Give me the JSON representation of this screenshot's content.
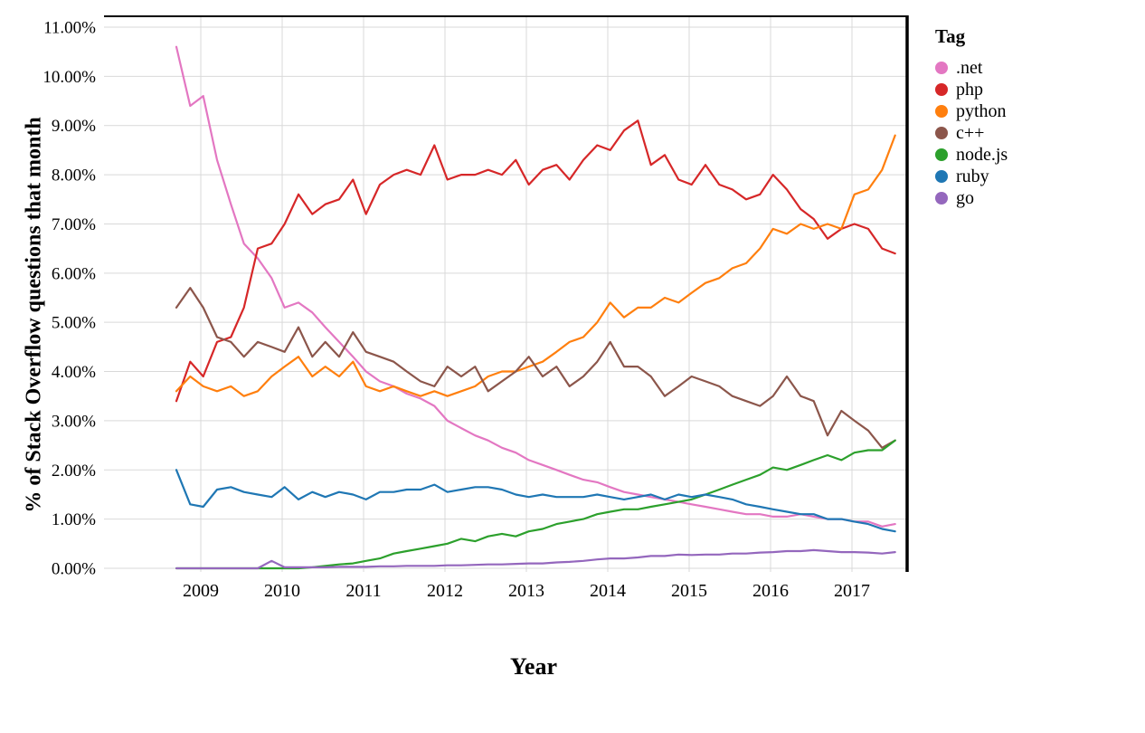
{
  "chart_data": {
    "type": "line",
    "title": "",
    "xlabel": "Year",
    "ylabel": "% of Stack Overflow questions that month",
    "legend_title": "Tag",
    "legend_position": "top-right",
    "grid": true,
    "grid_color": "#d9d9d9",
    "border_color": "#000000",
    "xlim": [
      2008.55,
      2017.68
    ],
    "ylim": [
      0,
      11
    ],
    "ytick_values": [
      0,
      1,
      2,
      3,
      4,
      5,
      6,
      7,
      8,
      9,
      10,
      11
    ],
    "ytick_labels": [
      "0.00%",
      "1.00%",
      "2.00%",
      "3.00%",
      "4.00%",
      "5.00%",
      "6.00%",
      "7.00%",
      "8.00%",
      "9.00%",
      "10.00%",
      "11.00%"
    ],
    "xtick_values": [
      2009,
      2010,
      2011,
      2012,
      2013,
      2014,
      2015,
      2016,
      2017
    ],
    "xtick_labels": [
      "2009",
      "2010",
      "2011",
      "2012",
      "2013",
      "2014",
      "2015",
      "2016",
      "2017"
    ],
    "x": [
      2008.7,
      2008.87,
      2009.03,
      2009.2,
      2009.37,
      2009.53,
      2009.7,
      2009.87,
      2010.03,
      2010.2,
      2010.37,
      2010.53,
      2010.7,
      2010.87,
      2011.03,
      2011.2,
      2011.37,
      2011.53,
      2011.7,
      2011.87,
      2012.03,
      2012.2,
      2012.37,
      2012.53,
      2012.7,
      2012.87,
      2013.03,
      2013.2,
      2013.37,
      2013.53,
      2013.7,
      2013.87,
      2014.03,
      2014.2,
      2014.37,
      2014.53,
      2014.7,
      2014.87,
      2015.03,
      2015.2,
      2015.37,
      2015.53,
      2015.7,
      2015.87,
      2016.03,
      2016.2,
      2016.37,
      2016.53,
      2016.7,
      2016.87,
      2017.03,
      2017.2,
      2017.37,
      2017.53
    ],
    "series": [
      {
        "name": ".net",
        "color": "#e377c2",
        "values": [
          10.6,
          9.4,
          9.6,
          8.3,
          7.4,
          6.6,
          6.3,
          5.9,
          5.3,
          5.4,
          5.2,
          4.9,
          4.6,
          4.3,
          4.0,
          3.8,
          3.7,
          3.55,
          3.45,
          3.3,
          3.0,
          2.85,
          2.7,
          2.6,
          2.45,
          2.35,
          2.2,
          2.1,
          2.0,
          1.9,
          1.8,
          1.75,
          1.65,
          1.55,
          1.5,
          1.45,
          1.4,
          1.35,
          1.3,
          1.25,
          1.2,
          1.15,
          1.1,
          1.1,
          1.05,
          1.05,
          1.1,
          1.05,
          1.0,
          1.0,
          0.95,
          0.95,
          0.85,
          0.9
        ]
      },
      {
        "name": "php",
        "color": "#d62728",
        "values": [
          3.4,
          4.2,
          3.9,
          4.6,
          4.7,
          5.3,
          6.5,
          6.6,
          7.0,
          7.6,
          7.2,
          7.4,
          7.5,
          7.9,
          7.2,
          7.8,
          8.0,
          8.1,
          8.0,
          8.6,
          7.9,
          8.0,
          8.0,
          8.1,
          8.0,
          8.3,
          7.8,
          8.1,
          8.2,
          7.9,
          8.3,
          8.6,
          8.5,
          8.9,
          9.1,
          8.2,
          8.4,
          7.9,
          7.8,
          8.2,
          7.8,
          7.7,
          7.5,
          7.6,
          8.0,
          7.7,
          7.3,
          7.1,
          6.7,
          6.9,
          7.0,
          6.9,
          6.5,
          6.4
        ]
      },
      {
        "name": "python",
        "color": "#ff7f0e",
        "values": [
          3.6,
          3.9,
          3.7,
          3.6,
          3.7,
          3.5,
          3.6,
          3.9,
          4.1,
          4.3,
          3.9,
          4.1,
          3.9,
          4.2,
          3.7,
          3.6,
          3.7,
          3.6,
          3.5,
          3.6,
          3.5,
          3.6,
          3.7,
          3.9,
          4.0,
          4.0,
          4.1,
          4.2,
          4.4,
          4.6,
          4.7,
          5.0,
          5.4,
          5.1,
          5.3,
          5.3,
          5.5,
          5.4,
          5.6,
          5.8,
          5.9,
          6.1,
          6.2,
          6.5,
          6.9,
          6.8,
          7.0,
          6.9,
          7.0,
          6.9,
          7.6,
          7.7,
          8.1,
          8.8
        ]
      },
      {
        "name": "c++",
        "color": "#8c564b",
        "values": [
          5.3,
          5.7,
          5.3,
          4.7,
          4.6,
          4.3,
          4.6,
          4.5,
          4.4,
          4.9,
          4.3,
          4.6,
          4.3,
          4.8,
          4.4,
          4.3,
          4.2,
          4.0,
          3.8,
          3.7,
          4.1,
          3.9,
          4.1,
          3.6,
          3.8,
          4.0,
          4.3,
          3.9,
          4.1,
          3.7,
          3.9,
          4.2,
          4.6,
          4.1,
          4.1,
          3.9,
          3.5,
          3.7,
          3.9,
          3.8,
          3.7,
          3.5,
          3.4,
          3.3,
          3.5,
          3.9,
          3.5,
          3.4,
          2.7,
          3.2,
          3.0,
          2.8,
          2.45,
          2.6
        ]
      },
      {
        "name": "node.js",
        "color": "#2ca02c",
        "values": [
          0,
          0,
          0,
          0,
          0,
          0,
          0,
          0,
          0,
          0,
          0.02,
          0.05,
          0.08,
          0.1,
          0.15,
          0.2,
          0.3,
          0.35,
          0.4,
          0.45,
          0.5,
          0.6,
          0.55,
          0.65,
          0.7,
          0.65,
          0.75,
          0.8,
          0.9,
          0.95,
          1.0,
          1.1,
          1.15,
          1.2,
          1.2,
          1.25,
          1.3,
          1.35,
          1.4,
          1.5,
          1.6,
          1.7,
          1.8,
          1.9,
          2.05,
          2.0,
          2.1,
          2.2,
          2.3,
          2.2,
          2.35,
          2.4,
          2.4,
          2.6
        ]
      },
      {
        "name": "ruby",
        "color": "#1f77b4",
        "values": [
          2.0,
          1.3,
          1.25,
          1.6,
          1.65,
          1.55,
          1.5,
          1.45,
          1.65,
          1.4,
          1.55,
          1.45,
          1.55,
          1.5,
          1.4,
          1.55,
          1.55,
          1.6,
          1.6,
          1.7,
          1.55,
          1.6,
          1.65,
          1.65,
          1.6,
          1.5,
          1.45,
          1.5,
          1.45,
          1.45,
          1.45,
          1.5,
          1.45,
          1.4,
          1.45,
          1.5,
          1.4,
          1.5,
          1.45,
          1.5,
          1.45,
          1.4,
          1.3,
          1.25,
          1.2,
          1.15,
          1.1,
          1.1,
          1.0,
          1.0,
          0.95,
          0.9,
          0.8,
          0.75
        ]
      },
      {
        "name": "go",
        "color": "#9467bd",
        "values": [
          0,
          0,
          0,
          0,
          0,
          0,
          0,
          0.15,
          0.02,
          0.02,
          0.02,
          0.02,
          0.03,
          0.03,
          0.03,
          0.04,
          0.04,
          0.05,
          0.05,
          0.05,
          0.06,
          0.06,
          0.07,
          0.08,
          0.08,
          0.09,
          0.1,
          0.1,
          0.12,
          0.13,
          0.15,
          0.18,
          0.2,
          0.2,
          0.22,
          0.25,
          0.25,
          0.28,
          0.27,
          0.28,
          0.28,
          0.3,
          0.3,
          0.32,
          0.33,
          0.35,
          0.35,
          0.37,
          0.35,
          0.33,
          0.33,
          0.32,
          0.3,
          0.33
        ]
      }
    ]
  }
}
